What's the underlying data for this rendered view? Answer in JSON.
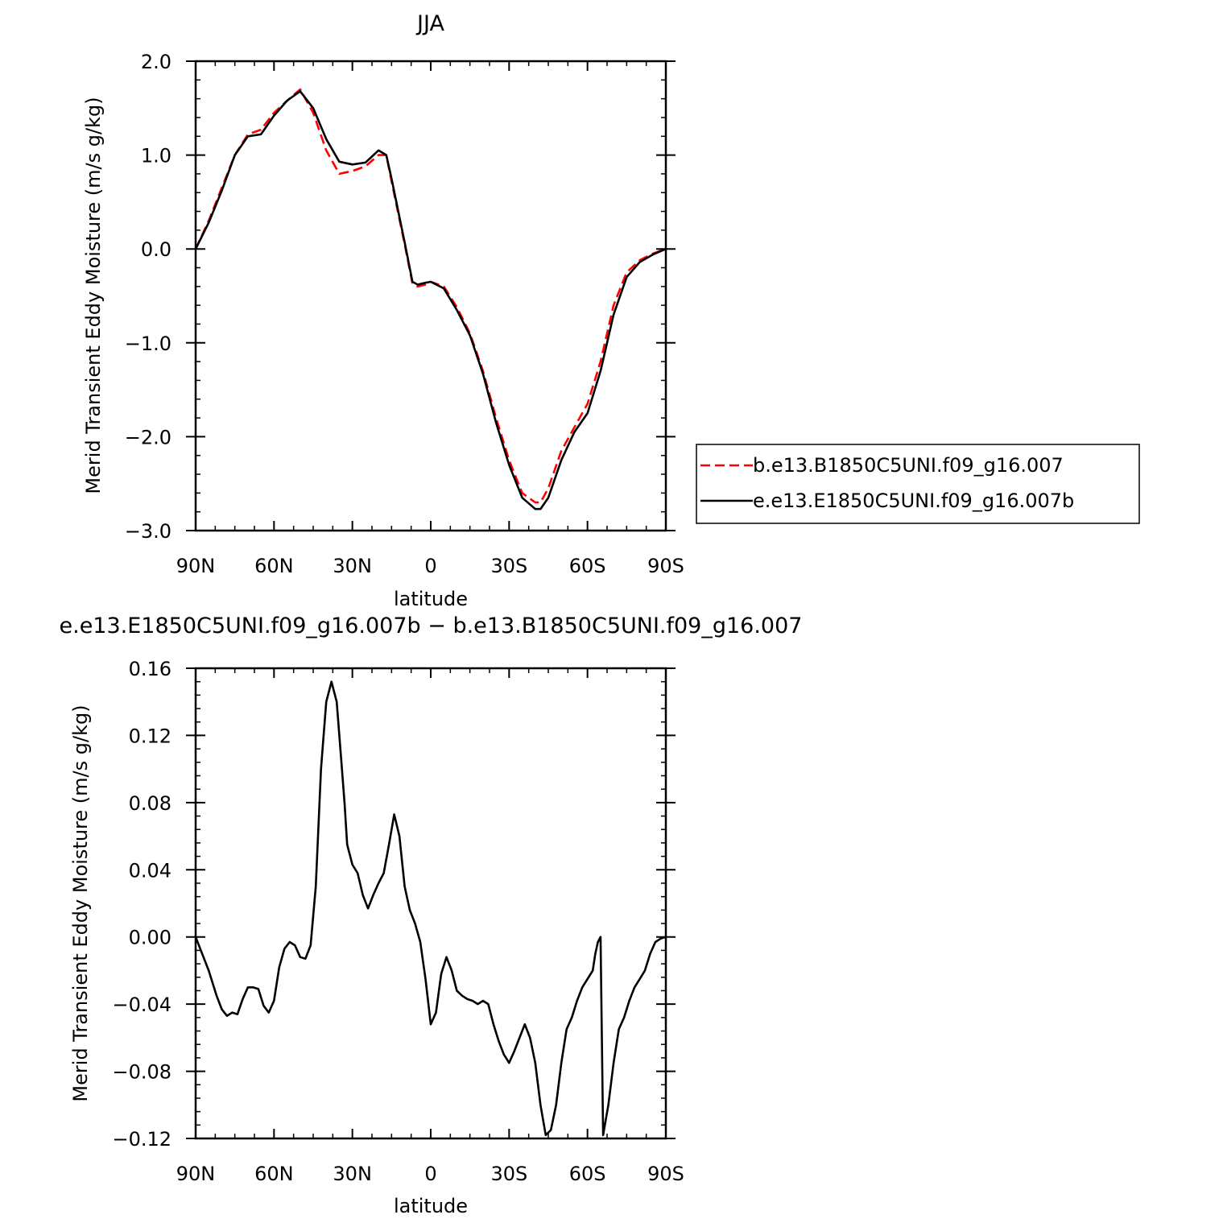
{
  "chart_data": [
    {
      "type": "line",
      "title": "JJA",
      "xlabel": "latitude",
      "ylabel": "Merid Transient Eddy Moisture (m/s g/kg)",
      "xlim": [
        90,
        -90
      ],
      "ylim": [
        -3.0,
        2.0
      ],
      "xticks": [
        90,
        60,
        30,
        0,
        -30,
        -60,
        -90
      ],
      "xtick_labels": [
        "90N",
        "60N",
        "30N",
        "0",
        "30S",
        "60S",
        "90S"
      ],
      "yticks": [
        2.0,
        1.0,
        0.0,
        -1.0,
        -2.0,
        -3.0
      ],
      "ytick_labels": [
        "2.0",
        "1.0",
        "0.0",
        "−1.0",
        "−2.0",
        "−3.0"
      ],
      "grid": false,
      "legend": "right",
      "series": [
        {
          "name": "b.e13.B1850C5UNI.f09_g16.007",
          "color": "#ff0000",
          "dash": "dashed",
          "x": [
            90,
            85,
            80,
            75,
            70,
            65,
            60,
            55,
            50,
            45,
            40,
            35,
            30,
            25,
            20,
            17,
            15,
            10,
            7,
            5,
            2,
            0,
            -5,
            -10,
            -15,
            -20,
            -25,
            -30,
            -35,
            -40,
            -42,
            -45,
            -50,
            -55,
            -60,
            -65,
            -70,
            -75,
            -80,
            -85,
            -90
          ],
          "y": [
            0.0,
            0.3,
            0.65,
            1.0,
            1.22,
            1.27,
            1.45,
            1.58,
            1.7,
            1.45,
            1.05,
            0.8,
            0.83,
            0.88,
            1.0,
            1.0,
            0.72,
            0.05,
            -0.37,
            -0.4,
            -0.38,
            -0.35,
            -0.4,
            -0.62,
            -0.9,
            -1.3,
            -1.8,
            -2.25,
            -2.6,
            -2.7,
            -2.7,
            -2.55,
            -2.15,
            -1.9,
            -1.65,
            -1.2,
            -0.6,
            -0.25,
            -0.12,
            -0.05,
            0.0
          ]
        },
        {
          "name": "e.e13.E1850C5UNI.f09_g16.007b",
          "color": "#000000",
          "dash": "solid",
          "x": [
            90,
            85,
            80,
            75,
            70,
            65,
            60,
            55,
            50,
            45,
            40,
            35,
            30,
            25,
            20,
            17,
            15,
            10,
            7,
            5,
            2,
            0,
            -5,
            -10,
            -15,
            -20,
            -25,
            -30,
            -35,
            -40,
            -42,
            -45,
            -50,
            -55,
            -60,
            -65,
            -70,
            -75,
            -80,
            -85,
            -90
          ],
          "y": [
            0.0,
            0.28,
            0.62,
            1.0,
            1.2,
            1.22,
            1.42,
            1.58,
            1.68,
            1.5,
            1.17,
            0.93,
            0.9,
            0.92,
            1.05,
            1.0,
            0.75,
            0.07,
            -0.35,
            -0.38,
            -0.36,
            -0.35,
            -0.42,
            -0.65,
            -0.92,
            -1.33,
            -1.85,
            -2.3,
            -2.65,
            -2.77,
            -2.77,
            -2.65,
            -2.25,
            -1.95,
            -1.75,
            -1.3,
            -0.7,
            -0.3,
            -0.14,
            -0.06,
            0.0
          ]
        }
      ]
    },
    {
      "type": "line",
      "title": "e.e13.E1850C5UNI.f09_g16.007b − b.e13.B1850C5UNI.f09_g16.007",
      "xlabel": "latitude",
      "ylabel": "Merid Transient Eddy Moisture (m/s g/kg)",
      "xlim": [
        90,
        -90
      ],
      "ylim": [
        -0.12,
        0.16
      ],
      "xticks": [
        90,
        60,
        30,
        0,
        -30,
        -60,
        -90
      ],
      "xtick_labels": [
        "90N",
        "60N",
        "30N",
        "0",
        "30S",
        "60S",
        "90S"
      ],
      "yticks": [
        0.16,
        0.12,
        0.08,
        0.04,
        0.0,
        -0.04,
        -0.08,
        -0.12
      ],
      "ytick_labels": [
        "0.16",
        "0.12",
        "0.08",
        "0.04",
        "0.00",
        "−0.04",
        "−0.08",
        "−0.12"
      ],
      "grid": false,
      "series": [
        {
          "name": "",
          "color": "#000000",
          "dash": "solid",
          "x": [
            90,
            87,
            85,
            82,
            80,
            78,
            76,
            74,
            72,
            70,
            68,
            66,
            64,
            62,
            60,
            58,
            56,
            54,
            52,
            50,
            48,
            46,
            44,
            42,
            40,
            38,
            36,
            34,
            33,
            32,
            30,
            28,
            26,
            24,
            22,
            20,
            18,
            16,
            14,
            12,
            10,
            8,
            6,
            4,
            2,
            0,
            -2,
            -4,
            -6,
            -8,
            -10,
            -12,
            -14,
            -16,
            -18,
            -20,
            -22,
            -24,
            -26,
            -28,
            -30,
            -32,
            -34,
            -36,
            -38,
            -40,
            -42,
            -44,
            -46,
            -48,
            -50,
            -52,
            -54,
            -56,
            -58,
            -60,
            -62,
            -63,
            -64,
            -65,
            -66,
            -68,
            -70,
            -72,
            -74,
            -76,
            -78,
            -80,
            -82,
            -84,
            -86,
            -88,
            -90
          ],
          "y": [
            0.0,
            -0.012,
            -0.02,
            -0.035,
            -0.043,
            -0.047,
            -0.045,
            -0.046,
            -0.037,
            -0.03,
            -0.03,
            -0.031,
            -0.041,
            -0.045,
            -0.038,
            -0.018,
            -0.007,
            -0.003,
            -0.005,
            -0.012,
            -0.013,
            -0.005,
            0.03,
            0.1,
            0.14,
            0.152,
            0.14,
            0.1,
            0.08,
            0.055,
            0.043,
            0.038,
            0.025,
            0.017,
            0.025,
            0.032,
            0.038,
            0.055,
            0.073,
            0.06,
            0.03,
            0.016,
            0.008,
            -0.003,
            -0.025,
            -0.052,
            -0.045,
            -0.022,
            -0.012,
            -0.02,
            -0.032,
            -0.035,
            -0.037,
            -0.038,
            -0.04,
            -0.038,
            -0.04,
            -0.052,
            -0.062,
            -0.07,
            -0.075,
            -0.068,
            -0.06,
            -0.052,
            -0.06,
            -0.075,
            -0.1,
            -0.118,
            -0.115,
            -0.1,
            -0.075,
            -0.055,
            -0.048,
            -0.038,
            -0.03,
            -0.025,
            -0.02,
            -0.01,
            -0.003,
            0.0,
            -0.118,
            -0.1,
            -0.075,
            -0.055,
            -0.048,
            -0.038,
            -0.03,
            -0.025,
            -0.02,
            -0.01,
            -0.003,
            -0.001,
            0.0
          ]
        }
      ]
    }
  ]
}
